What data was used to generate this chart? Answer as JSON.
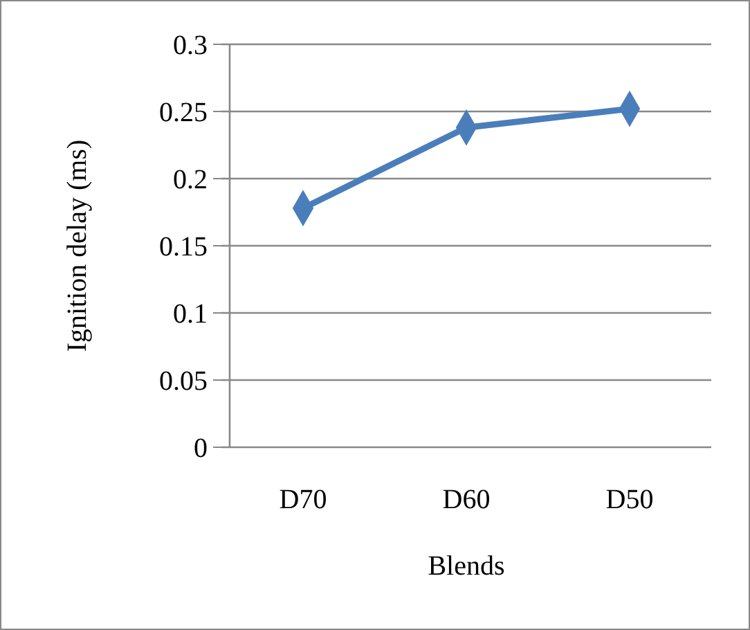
{
  "chart_data": {
    "type": "line",
    "xlabel": "Blends",
    "ylabel": "Ignition delay (ms)",
    "categories": [
      "D70",
      "D60",
      "D50"
    ],
    "series": [
      {
        "color": "#4a7ebb",
        "values": [
          0.178,
          0.238,
          0.252
        ]
      }
    ],
    "ylim": [
      0,
      0.3
    ],
    "yticks": [
      0,
      0.05,
      0.1,
      0.15,
      0.2,
      0.25,
      0.3
    ],
    "grid": "y",
    "marker": "diamond",
    "line_style": "solid"
  }
}
